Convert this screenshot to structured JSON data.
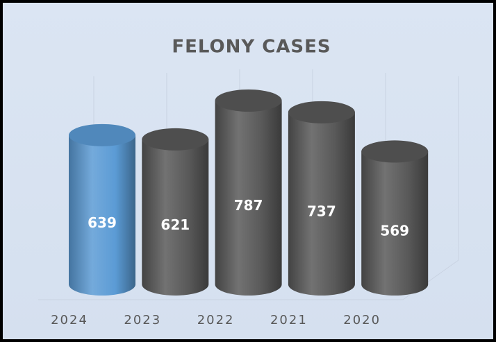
{
  "chart_data": {
    "type": "bar",
    "title": "FELONY CASES",
    "categories": [
      "2024",
      "2023",
      "2022",
      "2021",
      "2020"
    ],
    "values": [
      639,
      621,
      787,
      737,
      569
    ],
    "colors": [
      "#5b9bd5",
      "#595959",
      "#595959",
      "#595959",
      "#595959"
    ]
  }
}
